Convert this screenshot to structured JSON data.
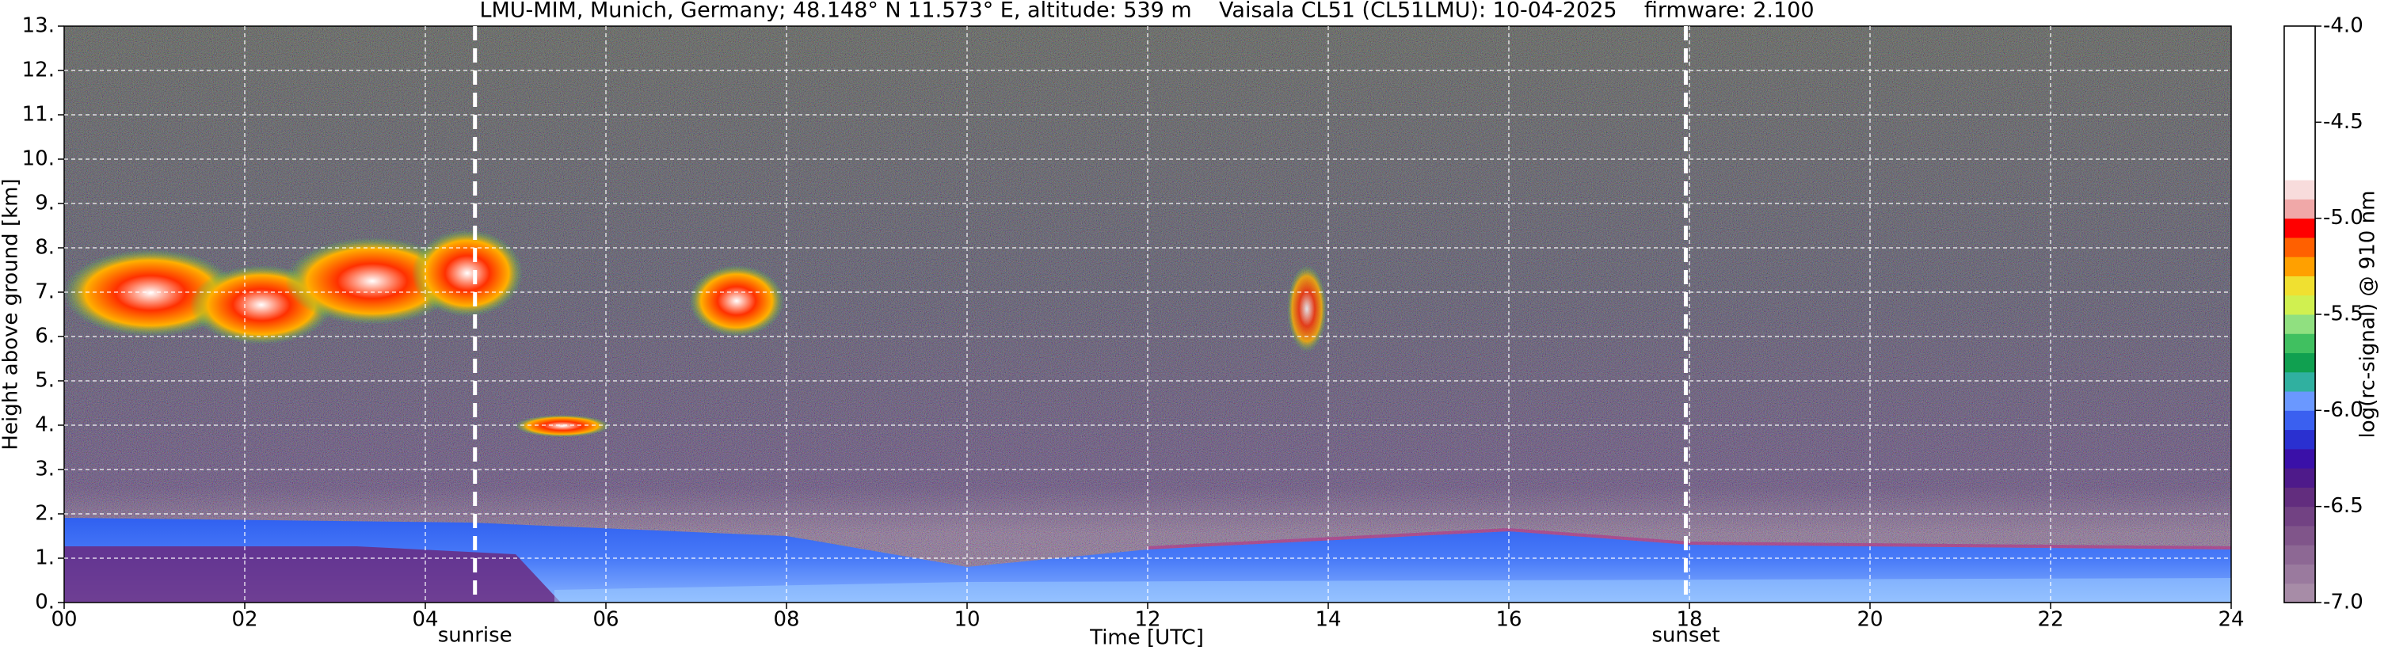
{
  "chart_data": {
    "type": "heatmap",
    "title": "LMU-MIM, Munich, Germany; 48.148° N 11.573° E, altitude: 539 m    Vaisala CL51 (CL51LMU): 10-04-2025    firmware: 2.100",
    "xlabel": "Time [UTC]",
    "ylabel": "Height above ground [km]",
    "xlim": [
      0,
      24
    ],
    "xticks": [
      {
        "value": 0,
        "label": "00"
      },
      {
        "value": 2,
        "label": "02"
      },
      {
        "value": 4,
        "label": "04"
      },
      {
        "value": 6,
        "label": "06"
      },
      {
        "value": 8,
        "label": "08"
      },
      10,
      12,
      14,
      16,
      18,
      20,
      22,
      24
    ],
    "ylim": [
      0,
      13
    ],
    "yticks": [
      {
        "value": 0,
        "label": "0."
      },
      {
        "value": 1,
        "label": "1."
      },
      {
        "value": 2,
        "label": "2."
      },
      {
        "value": 3,
        "label": "3."
      },
      {
        "value": 4,
        "label": "4."
      },
      {
        "value": 5,
        "label": "5."
      },
      {
        "value": 6,
        "label": "6."
      },
      {
        "value": 7,
        "label": "7."
      },
      {
        "value": 8,
        "label": "8."
      },
      {
        "value": 9,
        "label": "9."
      },
      {
        "value": 10,
        "label": "10."
      },
      {
        "value": 11,
        "label": "11."
      },
      {
        "value": 12,
        "label": "12."
      },
      {
        "value": 13,
        "label": "13."
      }
    ],
    "grid": true,
    "annotations": [
      {
        "label": "sunrise",
        "x": 4.55
      },
      {
        "label": "sunset",
        "x": 17.96
      }
    ],
    "colorbar": {
      "label": "log(rc-signal) @ 910 nm",
      "lim": [
        -7,
        -4
      ],
      "ticks": [
        {
          "value": -4,
          "label": "-4.0"
        },
        -4.5,
        {
          "value": -5,
          "label": "-5.0"
        },
        -5.5,
        {
          "value": -6,
          "label": "-6.0"
        },
        -6.5,
        {
          "value": -7,
          "label": "-7.0"
        }
      ],
      "colors": [
        "#a78ca7",
        "#9a7a9e",
        "#8d6894",
        "#80558a",
        "#724283",
        "#622d7e",
        "#4e1a8a",
        "#3a10a8",
        "#2a30d0",
        "#3a60f0",
        "#6a98ff",
        "#30b0a0",
        "#10a050",
        "#40c060",
        "#90e080",
        "#d0f050",
        "#f0e030",
        "#ffa000",
        "#ff6000",
        "#ff0000",
        "#f0a8a8",
        "#f8dcdc",
        "#ffffff",
        "#ffffff",
        "#ffffff",
        "#ffffff",
        "#ffffff",
        "#ffffff",
        "#ffffff",
        "#ffffff"
      ]
    }
  }
}
